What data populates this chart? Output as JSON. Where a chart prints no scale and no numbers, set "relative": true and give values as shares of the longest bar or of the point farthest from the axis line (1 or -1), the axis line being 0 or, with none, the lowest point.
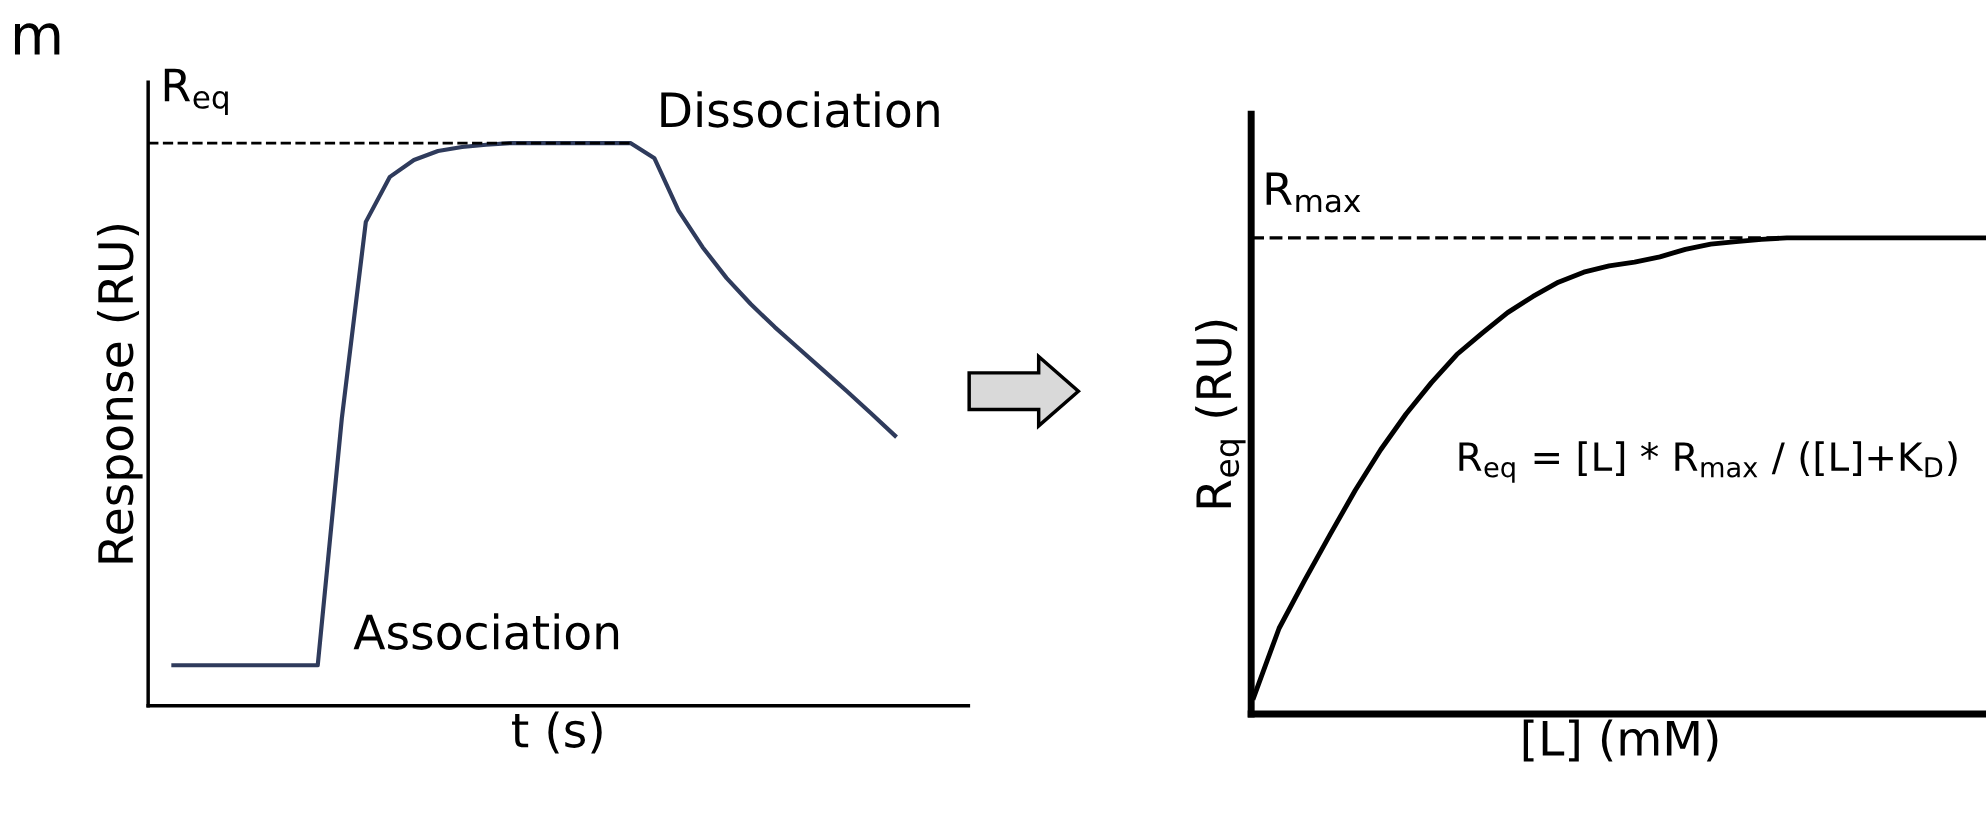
{
  "chart_data": [
    {
      "type": "line",
      "relative": true,
      "xlabel": "t (s)",
      "ylabel": "Response (RU)",
      "legend": false,
      "marker": "none",
      "line_style": "solid",
      "categories": [
        null,
        null,
        null,
        null,
        null,
        null,
        null,
        null,
        null,
        null,
        null,
        null,
        null,
        null,
        null,
        null,
        null,
        null,
        null,
        null,
        null,
        null,
        null,
        null,
        null,
        null,
        null,
        null,
        null,
        null,
        null
      ],
      "series": [
        {
          "color": "#2f3b5c",
          "values": [
            0.072,
            0.072,
            0.072,
            0.072,
            0.072,
            0.072,
            0.072,
            0.51,
            0.86,
            0.94,
            0.97,
            0.986,
            0.993,
            0.997,
            1.0,
            1.0,
            1.0,
            1.0,
            1.0,
            1.0,
            0.973,
            0.88,
            0.815,
            0.76,
            0.714,
            0.673,
            0.635,
            0.597,
            0.559,
            0.52,
            0.48
          ]
        }
      ],
      "ref_lines": [
        {
          "axis": "y",
          "value": 1.0,
          "label": "R$_{eq}$",
          "line_style": "dashed",
          "color": "#000000"
        }
      ],
      "annotations": [
        "m",
        "Dissociation",
        "Association"
      ]
    },
    {
      "type": "line",
      "relative": true,
      "xlabel": "[L] (mM)",
      "ylabel": "R$_{eq}$ (RU)",
      "legend": false,
      "marker": "none",
      "line_style": "solid",
      "categories": [
        null,
        null,
        null,
        null,
        null,
        null,
        null,
        null,
        null,
        null,
        null,
        null,
        null,
        null,
        null,
        null,
        null,
        null,
        null,
        null,
        null,
        null,
        null,
        null,
        null,
        null,
        null,
        null,
        null,
        null
      ],
      "series": [
        {
          "color": "#000000",
          "values": [
            0.035,
            0.18,
            0.28,
            0.376,
            0.47,
            0.555,
            0.63,
            0.696,
            0.755,
            0.8,
            0.843,
            0.877,
            0.907,
            0.928,
            0.941,
            0.949,
            0.96,
            0.976,
            0.987,
            0.992,
            0.997,
            1.0,
            1.0,
            1.0,
            1.0,
            1.0,
            1.0,
            1.0,
            1.0,
            1.0
          ]
        }
      ],
      "ref_lines": [
        {
          "axis": "y",
          "value": 1.0,
          "label": "R$_{max}$",
          "line_style": "dashed",
          "color": "#000000"
        }
      ],
      "annotations": [
        "R$_{eq}$ = [L] * R$_{max}$ / ([L]+K$_{D}$)"
      ]
    }
  ]
}
